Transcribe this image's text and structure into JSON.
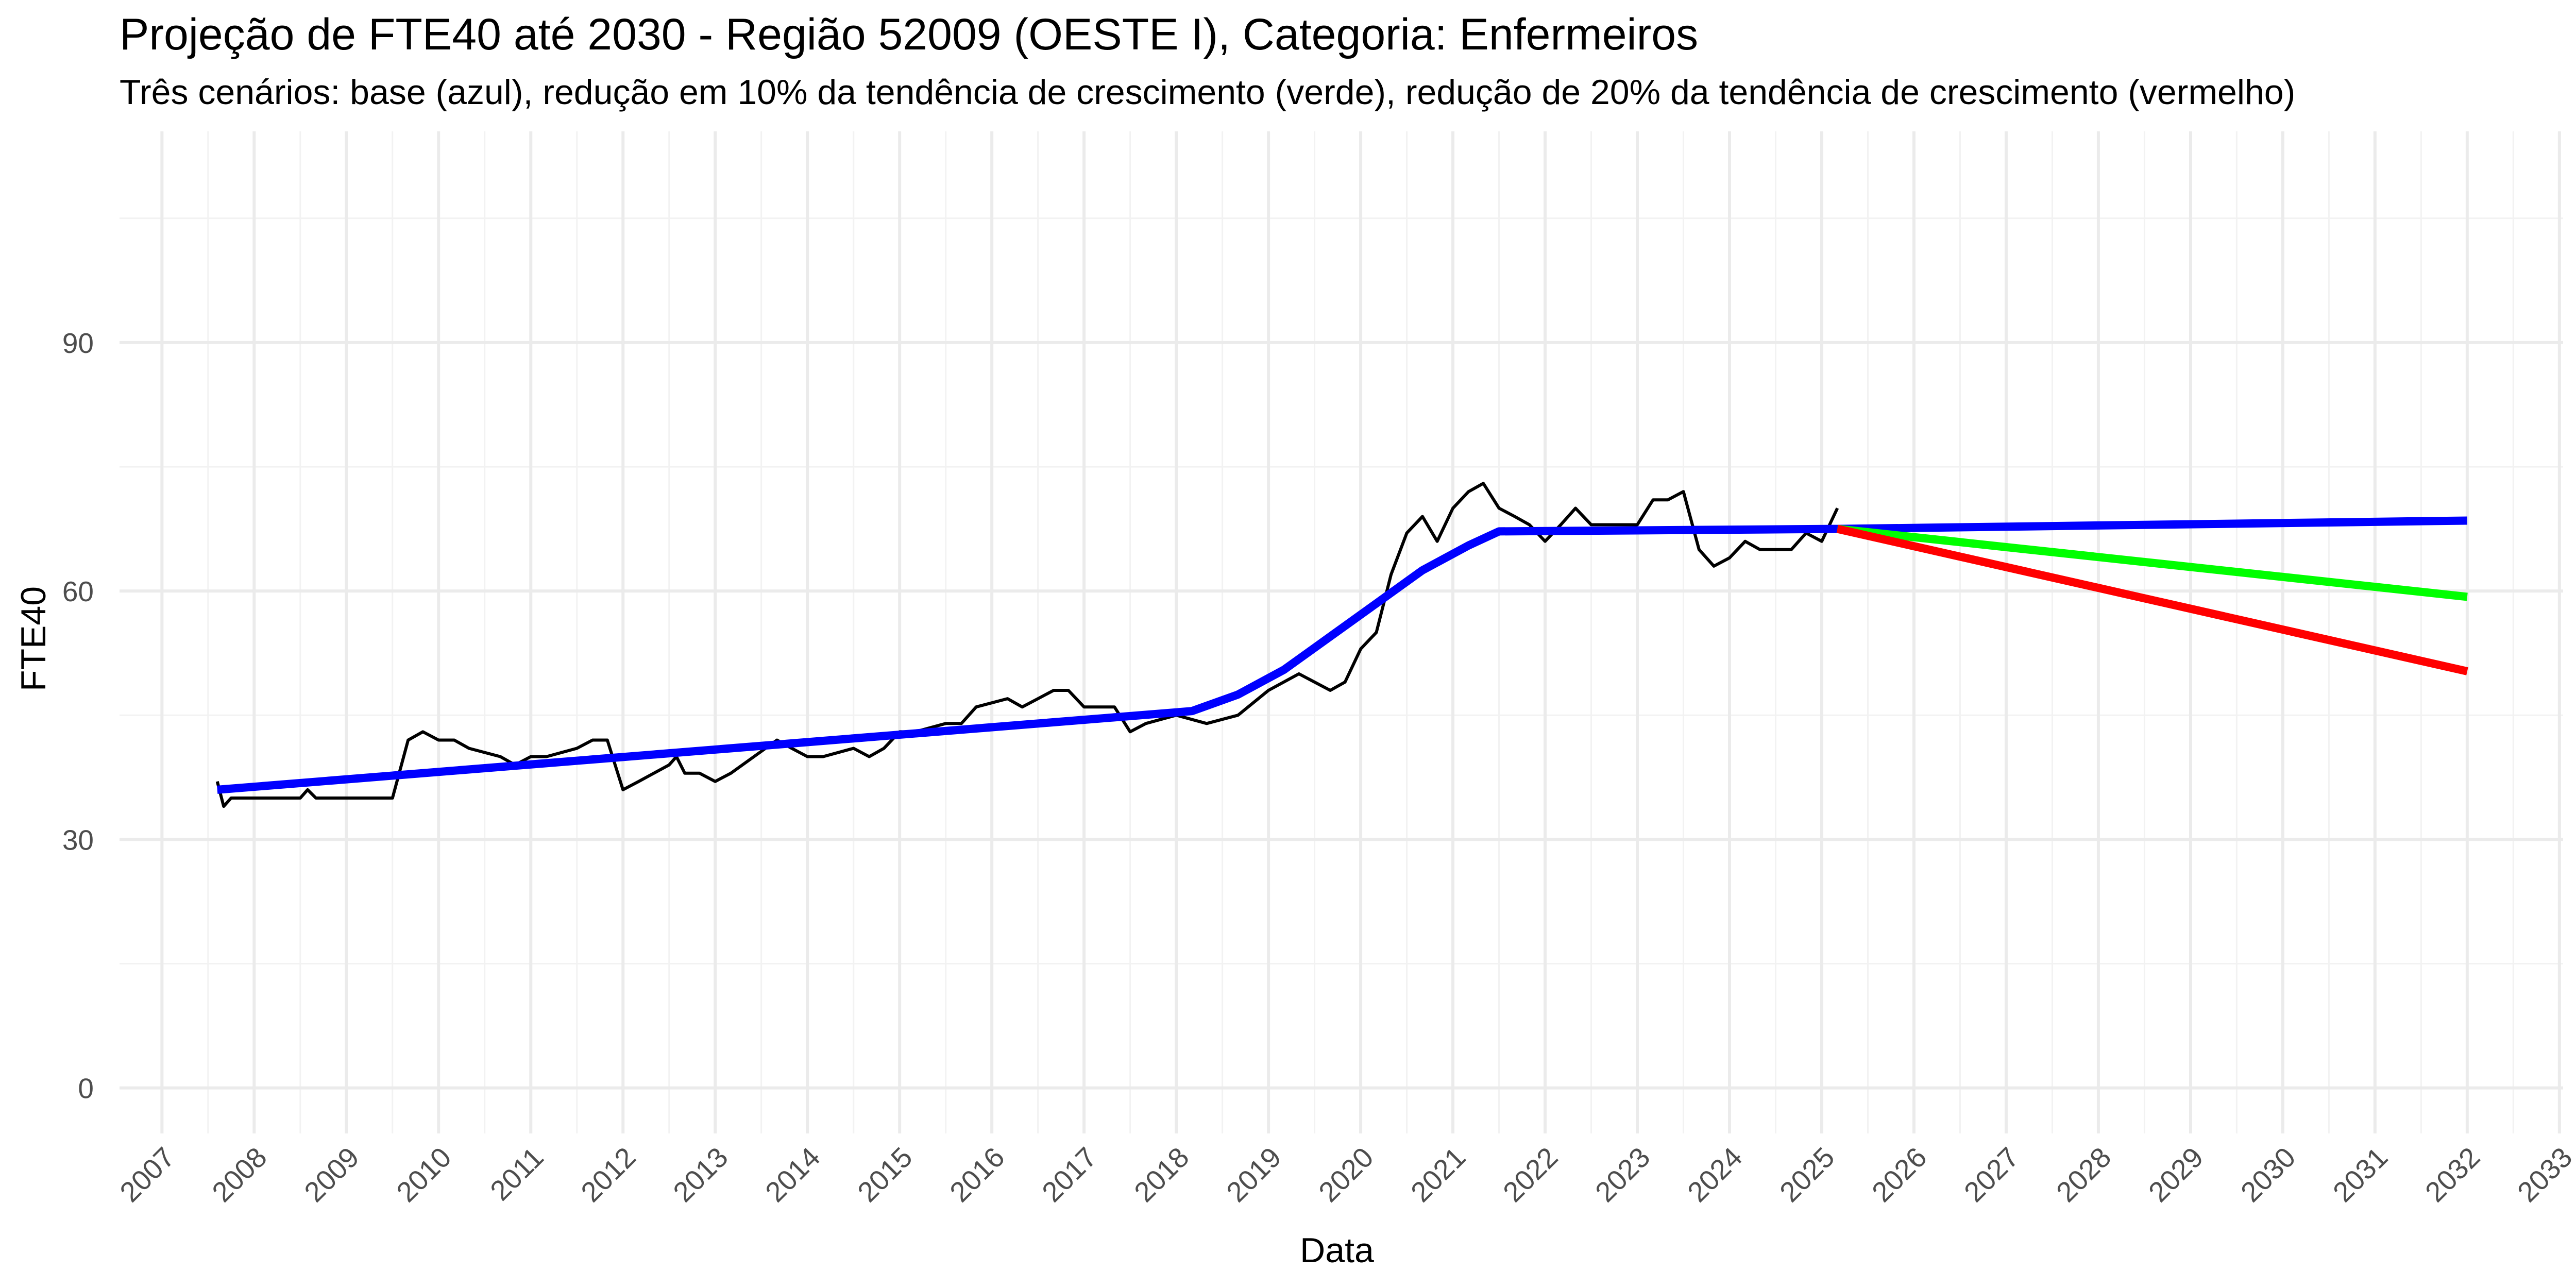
{
  "chart_data": {
    "type": "line",
    "title": "Projeção de FTE40 até 2030 - Região 52009 (OESTE I), Categoria: Enfermeiros",
    "subtitle": "Três cenários: base (azul), redução em 10% da tendência de crescimento (verde), redução de 20% da tendência de crescimento (vermelho)",
    "xlabel": "Data",
    "ylabel": "FTE40",
    "x_ticks": [
      "2007",
      "2008",
      "2009",
      "2010",
      "2011",
      "2012",
      "2013",
      "2014",
      "2015",
      "2016",
      "2017",
      "2018",
      "2019",
      "2020",
      "2021",
      "2022",
      "2023",
      "2024",
      "2025",
      "2026",
      "2027",
      "2028",
      "2029",
      "2030",
      "2031",
      "2032",
      "2033"
    ],
    "y_ticks": [
      0,
      30,
      60,
      90
    ],
    "xlim": [
      2006.54,
      2033.04
    ],
    "ylim": [
      -5.5,
      115.5
    ],
    "grid": true,
    "legend": "none",
    "series": [
      {
        "color": "#000000",
        "style": "observed",
        "x": [
          2007.6,
          2007.67,
          2007.75,
          2008.0,
          2008.5,
          2008.58,
          2008.67,
          2009.0,
          2009.5,
          2009.67,
          2009.83,
          2010.0,
          2010.17,
          2010.33,
          2010.67,
          2010.83,
          2011.0,
          2011.17,
          2011.5,
          2011.67,
          2011.83,
          2012.0,
          2012.17,
          2012.5,
          2012.58,
          2012.67,
          2012.83,
          2013.0,
          2013.17,
          2013.67,
          2013.83,
          2014.0,
          2014.17,
          2014.5,
          2014.67,
          2014.83,
          2015.0,
          2015.17,
          2015.5,
          2015.67,
          2015.83,
          2016.17,
          2016.33,
          2016.5,
          2016.67,
          2016.83,
          2017.0,
          2017.33,
          2017.5,
          2017.67,
          2018.0,
          2018.33,
          2018.67,
          2019.0,
          2019.33,
          2019.67,
          2019.83,
          2020.0,
          2020.17,
          2020.33,
          2020.5,
          2020.67,
          2020.83,
          2021.0,
          2021.17,
          2021.33,
          2021.5,
          2021.67,
          2021.83,
          2022.0,
          2022.17,
          2022.33,
          2022.5,
          2022.67,
          2022.83,
          2023.0,
          2023.17,
          2023.33,
          2023.5,
          2023.67,
          2023.83,
          2024.0,
          2024.17,
          2024.33,
          2024.5,
          2024.67,
          2024.83,
          2025.0,
          2025.17
        ],
        "y": [
          37,
          34,
          35,
          35,
          35,
          36,
          35,
          35,
          35,
          42,
          43,
          42,
          42,
          41,
          40,
          39,
          40,
          40,
          41,
          42,
          42,
          36,
          37,
          39,
          40,
          38,
          38,
          37,
          38,
          42,
          41,
          40,
          40,
          41,
          40,
          41,
          43,
          43,
          44,
          44,
          46,
          47,
          46,
          47,
          48,
          48,
          46,
          46,
          43,
          44,
          45,
          44,
          45,
          48,
          50,
          48,
          49,
          53,
          55,
          62,
          67,
          69,
          66,
          70,
          72,
          73,
          70,
          69,
          68,
          66,
          68,
          70,
          68,
          68,
          68,
          68,
          71,
          71,
          72,
          65,
          63,
          64,
          66,
          65,
          65,
          65,
          67,
          66,
          70
        ]
      },
      {
        "color": "#0000ff",
        "style": "fitted",
        "x": [
          2007.6,
          2018.17,
          2018.67,
          2019.17,
          2019.67,
          2020.17,
          2020.67,
          2021.17,
          2021.5,
          2025.17,
          2032.0
        ],
        "y": [
          36,
          45.5,
          47.5,
          50.5,
          54.5,
          58.5,
          62.5,
          65.5,
          67.2,
          67.5,
          68.5
        ]
      },
      {
        "color": "#00ff00",
        "style": "projection",
        "x": [
          2025.17,
          2032.0
        ],
        "y": [
          67.5,
          59.3
        ]
      },
      {
        "color": "#ff0000",
        "style": "projection",
        "x": [
          2025.17,
          2032.0
        ],
        "y": [
          67.5,
          50.3
        ]
      }
    ]
  }
}
